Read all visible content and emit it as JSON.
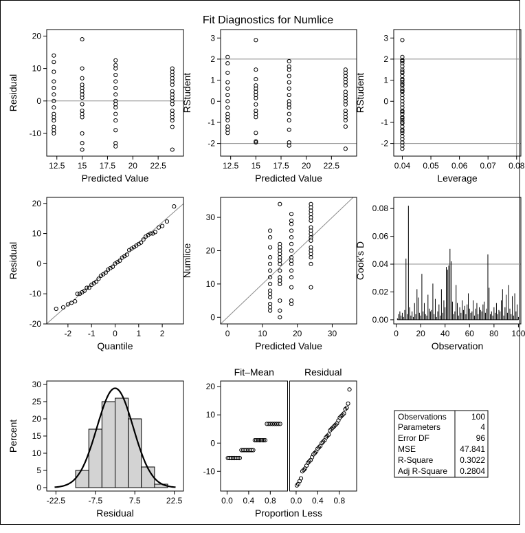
{
  "title": "Fit Diagnostics for Numlice",
  "chart_data": [
    {
      "id": "resid-vs-pred",
      "type": "scatter",
      "xlabel": "Predicted Value",
      "ylabel": "Residual",
      "xlim": [
        11.5,
        25.0
      ],
      "ylim": [
        -17,
        22
      ],
      "xticks": [
        12.5,
        15.0,
        17.5,
        20.0,
        22.5
      ],
      "yticks": [
        -10,
        0,
        10,
        20
      ],
      "ref_h": [
        0
      ],
      "x": [
        12.2,
        12.2,
        12.2,
        12.2,
        12.2,
        12.2,
        12.2,
        12.2,
        12.2,
        12.2,
        12.2,
        12.2,
        12.2,
        12.2,
        15.0,
        15.0,
        15.0,
        15.0,
        15.0,
        15.0,
        15.0,
        15.0,
        15.0,
        15.0,
        15.0,
        15.0,
        15.0,
        15.0,
        15.0,
        18.3,
        18.3,
        18.3,
        18.3,
        18.3,
        18.3,
        18.3,
        18.3,
        18.3,
        18.3,
        18.3,
        18.3,
        18.3,
        18.3,
        18.3,
        23.9,
        23.9,
        23.9,
        23.9,
        23.9,
        23.9,
        23.9,
        23.9,
        23.9,
        23.9,
        23.9,
        23.9,
        23.9,
        23.9,
        23.9,
        23.9,
        23.9
      ],
      "y": [
        14,
        12,
        9,
        6,
        4,
        2,
        0,
        -2,
        -4,
        -5,
        -6,
        -8,
        -9,
        -10,
        19,
        10,
        7,
        5,
        4,
        3,
        2,
        1,
        -1,
        -3,
        -4,
        -5,
        -10,
        -13,
        -15,
        12.5,
        11,
        10,
        8,
        6,
        4,
        2,
        0,
        -1,
        -2,
        -4,
        -6,
        -9,
        -13,
        -14,
        10,
        9,
        8,
        7,
        6,
        5,
        3,
        2,
        1,
        0,
        -1,
        -3,
        -4,
        -5,
        -6,
        -8,
        -15
      ]
    },
    {
      "id": "rstudent-vs-pred",
      "type": "scatter",
      "xlabel": "Predicted Value",
      "ylabel": "RStudent",
      "xlim": [
        11.5,
        25.0
      ],
      "ylim": [
        -2.6,
        3.4
      ],
      "xticks": [
        12.5,
        15.0,
        17.5,
        20.0,
        22.5
      ],
      "yticks": [
        -2,
        -1,
        0,
        1,
        2,
        3
      ],
      "ref_h": [
        -2,
        2
      ],
      "x": [
        12.2,
        12.2,
        12.2,
        12.2,
        12.2,
        12.2,
        12.2,
        12.2,
        12.2,
        12.2,
        12.2,
        12.2,
        12.2,
        12.2,
        15.0,
        15.0,
        15.0,
        15.0,
        15.0,
        15.0,
        15.0,
        15.0,
        15.0,
        15.0,
        15.0,
        15.0,
        15.0,
        15.0,
        15.0,
        18.3,
        18.3,
        18.3,
        18.3,
        18.3,
        18.3,
        18.3,
        18.3,
        18.3,
        18.3,
        18.3,
        18.3,
        18.3,
        18.3,
        18.3,
        23.9,
        23.9,
        23.9,
        23.9,
        23.9,
        23.9,
        23.9,
        23.9,
        23.9,
        23.9,
        23.9,
        23.9,
        23.9,
        23.9,
        23.9,
        23.9,
        23.9
      ],
      "y": [
        2.1,
        1.8,
        1.35,
        0.9,
        0.6,
        0.3,
        0.0,
        -0.3,
        -0.6,
        -0.75,
        -0.9,
        -1.2,
        -1.35,
        -1.5,
        2.9,
        1.5,
        1.05,
        0.75,
        0.6,
        0.45,
        0.3,
        0.15,
        -0.15,
        -0.45,
        -0.6,
        -0.75,
        -1.5,
        -1.9,
        -1.95,
        1.9,
        1.65,
        1.5,
        1.2,
        0.9,
        0.6,
        0.3,
        0.0,
        -0.15,
        -0.3,
        -0.6,
        -0.9,
        -1.35,
        -1.95,
        -2.1,
        1.5,
        1.35,
        1.2,
        1.05,
        0.9,
        0.75,
        0.45,
        0.3,
        0.15,
        0.0,
        -0.15,
        -0.45,
        -0.6,
        -0.75,
        -0.9,
        -1.2,
        -2.25
      ]
    },
    {
      "id": "rstudent-vs-leverage",
      "type": "scatter",
      "xlabel": "Leverage",
      "ylabel": "RStudent",
      "xlim": [
        0.037,
        0.0815
      ],
      "ylim": [
        -2.6,
        3.4
      ],
      "xticks": [
        0.04,
        0.05,
        0.06,
        0.07,
        0.08
      ],
      "yticks": [
        -2,
        -1,
        0,
        1,
        2,
        3
      ],
      "ref_h": [
        -2,
        2
      ],
      "ref_v": [
        0.08
      ],
      "x": [
        0.04,
        0.04,
        0.04,
        0.04,
        0.04,
        0.04,
        0.04,
        0.04,
        0.04,
        0.04,
        0.04,
        0.04,
        0.04,
        0.04,
        0.04,
        0.04,
        0.04,
        0.04,
        0.04,
        0.04,
        0.04,
        0.04,
        0.04,
        0.04,
        0.04,
        0.04,
        0.04,
        0.04,
        0.04,
        0.04,
        0.04,
        0.04,
        0.04,
        0.04,
        0.04,
        0.04,
        0.04,
        0.04,
        0.04,
        0.04
      ],
      "y": [
        2.9,
        2.1,
        1.95,
        1.8,
        1.65,
        1.5,
        1.35,
        1.2,
        1.05,
        0.9,
        0.75,
        0.6,
        0.45,
        0.3,
        0.15,
        0.0,
        -0.15,
        -0.3,
        -0.45,
        -0.6,
        -0.75,
        -0.9,
        -1.05,
        -1.2,
        -1.35,
        -1.5,
        -1.65,
        -1.8,
        -1.95,
        -2.1,
        -2.25,
        1.9,
        1.0,
        0.5,
        -0.5,
        -1.0,
        1.4,
        -1.4,
        0.8,
        -0.8
      ]
    },
    {
      "id": "qq-plot",
      "type": "scatter",
      "xlabel": "Quantile",
      "ylabel": "Residual",
      "xlim": [
        -2.9,
        2.9
      ],
      "ylim": [
        -20,
        22
      ],
      "xticks": [
        -2,
        -1,
        0,
        1,
        2
      ],
      "yticks": [
        -20,
        -10,
        0,
        10,
        20
      ],
      "ref_line": [
        [
          -2.9,
          -19.9
        ],
        [
          2.9,
          19.9
        ]
      ],
      "x": [
        -2.5,
        -2.2,
        -2.0,
        -1.85,
        -1.7,
        -1.6,
        -1.5,
        -1.4,
        -1.3,
        -1.2,
        -1.1,
        -1.0,
        -0.9,
        -0.8,
        -0.7,
        -0.6,
        -0.5,
        -0.4,
        -0.3,
        -0.2,
        -0.1,
        0.0,
        0.1,
        0.2,
        0.3,
        0.4,
        0.5,
        0.6,
        0.7,
        0.8,
        0.9,
        1.0,
        1.1,
        1.2,
        1.3,
        1.4,
        1.5,
        1.6,
        1.7,
        1.85,
        2.0,
        2.2,
        2.5
      ],
      "y": [
        -15,
        -14.5,
        -13.5,
        -13,
        -12.5,
        -10,
        -10,
        -9.5,
        -9,
        -8,
        -8,
        -7,
        -6.5,
        -6,
        -5,
        -4,
        -3.5,
        -3,
        -2,
        -1.5,
        -1,
        0,
        0.5,
        1,
        2,
        2.5,
        3,
        4.5,
        5,
        5.5,
        6,
        6.5,
        7,
        8,
        9,
        9.5,
        10,
        10,
        10.5,
        12,
        12.5,
        14,
        19
      ]
    },
    {
      "id": "obs-vs-pred",
      "type": "scatter",
      "xlabel": "Predicted Value",
      "ylabel": "Numlice",
      "xlim": [
        -2,
        37
      ],
      "ylim": [
        -2,
        36
      ],
      "xticks": [
        0,
        10,
        20,
        30
      ],
      "yticks": [
        0,
        10,
        20,
        30
      ],
      "ref_line": [
        [
          -2,
          -2
        ],
        [
          37,
          37
        ]
      ],
      "x": [
        12.2,
        12.2,
        12.2,
        12.2,
        12.2,
        12.2,
        12.2,
        12.2,
        12.2,
        12.2,
        12.2,
        12.2,
        12.2,
        12.2,
        15.0,
        15.0,
        15.0,
        15.0,
        15.0,
        15.0,
        15.0,
        15.0,
        15.0,
        15.0,
        15.0,
        15.0,
        15.0,
        15.0,
        15.0,
        18.3,
        18.3,
        18.3,
        18.3,
        18.3,
        18.3,
        18.3,
        18.3,
        18.3,
        18.3,
        18.3,
        18.3,
        18.3,
        18.3,
        18.3,
        23.9,
        23.9,
        23.9,
        23.9,
        23.9,
        23.9,
        23.9,
        23.9,
        23.9,
        23.9,
        23.9,
        23.9,
        23.9,
        23.9,
        23.9,
        23.9,
        23.9
      ],
      "y": [
        26,
        24,
        21,
        18,
        16,
        14,
        12,
        10,
        8,
        7,
        6,
        4,
        3,
        2,
        34,
        22,
        21,
        20,
        19,
        18,
        17,
        16,
        14,
        12,
        11,
        10,
        5,
        2,
        0,
        31,
        29,
        28,
        26,
        24,
        22,
        20,
        18,
        17,
        16,
        14,
        12,
        9,
        5,
        4,
        34,
        33,
        32,
        31,
        30,
        29,
        27,
        26,
        25,
        24,
        23,
        21,
        20,
        19,
        18,
        16,
        9
      ]
    },
    {
      "id": "cooks-d",
      "type": "bar",
      "xlabel": "Observation",
      "ylabel": "Cook's D",
      "xlim": [
        -2,
        102
      ],
      "ylim": [
        -0.003,
        0.088
      ],
      "xticks": [
        0,
        20,
        40,
        60,
        80,
        100
      ],
      "yticks": [
        0.0,
        0.02,
        0.04,
        0.06,
        0.08
      ],
      "ytick_labels": [
        "0.00",
        "0.02",
        "0.04",
        "0.06",
        "0.08"
      ],
      "ref_h": [
        0.04
      ],
      "values": [
        0.001,
        0.004,
        0.006,
        0.003,
        0.005,
        0.002,
        0.007,
        0.044,
        0.004,
        0.082,
        0.009,
        0.003,
        0.006,
        0.002,
        0.012,
        0.004,
        0.022,
        0.016,
        0.005,
        0.003,
        0.033,
        0.006,
        0.012,
        0.004,
        0.003,
        0.018,
        0.008,
        0.006,
        0.007,
        0.026,
        0.004,
        0.015,
        0.002,
        0.006,
        0.011,
        0.003,
        0.022,
        0.005,
        0.014,
        0.009,
        0.038,
        0.036,
        0.039,
        0.051,
        0.042,
        0.013,
        0.004,
        0.006,
        0.025,
        0.012,
        0.003,
        0.009,
        0.005,
        0.014,
        0.007,
        0.01,
        0.004,
        0.011,
        0.019,
        0.008,
        0.005,
        0.006,
        0.014,
        0.003,
        0.008,
        0.012,
        0.004,
        0.009,
        0.007,
        0.006,
        0.011,
        0.013,
        0.005,
        0.008,
        0.047,
        0.023,
        0.004,
        0.006,
        0.003,
        0.009,
        0.005,
        0.012,
        0.004,
        0.007,
        0.006,
        0.014,
        0.022,
        0.003,
        0.009,
        0.018,
        0.005,
        0.025,
        0.008,
        0.004,
        0.017,
        0.003,
        0.019,
        0.006,
        0.011,
        0.002
      ]
    },
    {
      "id": "residual-histogram",
      "type": "bar",
      "xlabel": "Residual",
      "ylabel": "Percent",
      "xlim": [
        -26,
        26
      ],
      "ylim": [
        -1,
        31
      ],
      "xticks": [
        -22.5,
        -7.5,
        7.5,
        22.5
      ],
      "xtick_labels": [
        "-22.5",
        "-7.5",
        "7.5",
        "22.5"
      ],
      "yticks": [
        0,
        5,
        10,
        15,
        20,
        25,
        30
      ],
      "bin_width": 5,
      "bin_left_edges": [
        -15,
        -10,
        -5,
        0,
        5,
        10,
        15
      ],
      "values": [
        5,
        17,
        25,
        26,
        20,
        6,
        1
      ],
      "normal_curve": {
        "mean": 0,
        "sd": 6.9
      }
    },
    {
      "id": "rf-spread",
      "type": "scatter",
      "xlabel": "Proportion Less",
      "ylabel": "",
      "panel_titles": [
        "Fit–Mean",
        "Residual"
      ],
      "xlim": [
        -0.12,
        1.12
      ],
      "ylim": [
        -17,
        22
      ],
      "xticks": [
        0.0,
        0.4,
        0.8
      ],
      "xtick_labels": [
        "0.0",
        "0.4",
        "0.8"
      ],
      "yticks": [
        -10,
        0,
        10,
        20
      ],
      "fit_mean": {
        "levels": [
          -5.3,
          -2.5,
          1.0,
          6.8
        ],
        "cum_props": [
          0.0,
          0.25,
          0.5,
          0.72,
          1.0
        ]
      },
      "residual_quantiles": [
        -15,
        -14.5,
        -13.5,
        -12.5,
        -10,
        -9.5,
        -9,
        -8,
        -7,
        -6.5,
        -6,
        -5,
        -4,
        -3.5,
        -3,
        -2,
        -1.5,
        -1,
        0,
        0.5,
        1,
        2,
        2.5,
        3,
        4.5,
        5,
        5.5,
        6,
        6.5,
        7,
        8,
        9,
        9.5,
        10,
        10.5,
        12,
        12.5,
        14,
        19
      ]
    }
  ],
  "fit_statistics": {
    "rows": [
      {
        "label": "Observations",
        "value": "100"
      },
      {
        "label": "Parameters",
        "value": "4"
      },
      {
        "label": "Error DF",
        "value": "96"
      },
      {
        "label": "MSE",
        "value": "47.841"
      },
      {
        "label": "R-Square",
        "value": "0.3022"
      },
      {
        "label": "Adj R-Square",
        "value": "0.2804"
      }
    ]
  }
}
